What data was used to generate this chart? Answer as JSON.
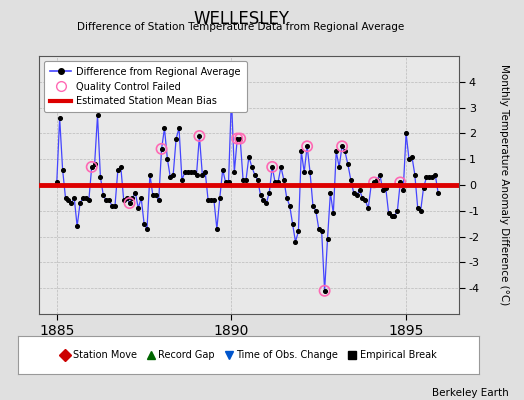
{
  "title": "WELLESLEY",
  "subtitle": "Difference of Station Temperature Data from Regional Average",
  "ylabel": "Monthly Temperature Anomaly Difference (°C)",
  "xlabel_ticks": [
    1885,
    1890,
    1895
  ],
  "ylim": [
    -5,
    5
  ],
  "xlim": [
    1884.5,
    1896.5
  ],
  "yticks": [
    -4,
    -3,
    -2,
    -1,
    0,
    1,
    2,
    3,
    4
  ],
  "background_color": "#e0e0e0",
  "plot_bg_color": "#e8e8e8",
  "line_color": "#4444ff",
  "dot_color": "#000000",
  "bias_color": "#dd0000",
  "bias_value": 0.0,
  "qc_color": "#ff69b4",
  "footer": "Berkeley Earth",
  "data_x": [
    1885.0,
    1885.083,
    1885.167,
    1885.25,
    1885.333,
    1885.417,
    1885.5,
    1885.583,
    1885.667,
    1885.75,
    1885.833,
    1885.917,
    1886.0,
    1886.083,
    1886.167,
    1886.25,
    1886.333,
    1886.417,
    1886.5,
    1886.583,
    1886.667,
    1886.75,
    1886.833,
    1886.917,
    1887.0,
    1887.083,
    1887.167,
    1887.25,
    1887.333,
    1887.417,
    1887.5,
    1887.583,
    1887.667,
    1887.75,
    1887.833,
    1887.917,
    1888.0,
    1888.083,
    1888.167,
    1888.25,
    1888.333,
    1888.417,
    1888.5,
    1888.583,
    1888.667,
    1888.75,
    1888.833,
    1888.917,
    1889.0,
    1889.083,
    1889.167,
    1889.25,
    1889.333,
    1889.417,
    1889.5,
    1889.583,
    1889.667,
    1889.75,
    1889.833,
    1889.917,
    1890.0,
    1890.083,
    1890.167,
    1890.25,
    1890.333,
    1890.417,
    1890.5,
    1890.583,
    1890.667,
    1890.75,
    1890.833,
    1890.917,
    1891.0,
    1891.083,
    1891.167,
    1891.25,
    1891.333,
    1891.417,
    1891.5,
    1891.583,
    1891.667,
    1891.75,
    1891.833,
    1891.917,
    1892.0,
    1892.083,
    1892.167,
    1892.25,
    1892.333,
    1892.417,
    1892.5,
    1892.583,
    1892.667,
    1892.75,
    1892.833,
    1892.917,
    1893.0,
    1893.083,
    1893.167,
    1893.25,
    1893.333,
    1893.417,
    1893.5,
    1893.583,
    1893.667,
    1893.75,
    1893.833,
    1893.917,
    1894.0,
    1894.083,
    1894.167,
    1894.25,
    1894.333,
    1894.417,
    1894.5,
    1894.583,
    1894.667,
    1894.75,
    1894.833,
    1894.917,
    1895.0,
    1895.083,
    1895.167,
    1895.25,
    1895.333,
    1895.417,
    1895.5,
    1895.583,
    1895.667,
    1895.75,
    1895.833,
    1895.917
  ],
  "data_y": [
    0.1,
    2.6,
    0.6,
    -0.5,
    -0.6,
    -0.7,
    -0.5,
    -1.6,
    -0.7,
    -0.5,
    -0.5,
    -0.6,
    0.7,
    0.8,
    2.7,
    0.3,
    -0.4,
    -0.6,
    -0.6,
    -0.8,
    -0.8,
    0.6,
    0.7,
    -0.6,
    -0.5,
    -0.7,
    -0.5,
    -0.3,
    -0.9,
    -0.5,
    -1.5,
    -1.7,
    0.4,
    -0.4,
    -0.4,
    -0.6,
    1.4,
    2.2,
    1.0,
    0.3,
    0.4,
    1.8,
    2.2,
    0.2,
    0.5,
    0.5,
    0.5,
    0.5,
    0.4,
    1.9,
    0.4,
    0.5,
    -0.6,
    -0.6,
    -0.6,
    -1.7,
    -0.5,
    0.6,
    0.1,
    0.1,
    3.4,
    0.5,
    1.8,
    1.8,
    0.2,
    0.2,
    1.1,
    0.7,
    0.4,
    0.2,
    -0.4,
    -0.6,
    -0.7,
    -0.3,
    0.7,
    0.1,
    0.1,
    0.7,
    0.2,
    -0.5,
    -0.8,
    -1.5,
    -2.2,
    -1.8,
    1.3,
    0.5,
    1.5,
    0.5,
    -0.8,
    -1.0,
    -1.7,
    -1.8,
    -4.1,
    -2.1,
    -0.3,
    -1.1,
    1.3,
    0.7,
    1.5,
    1.3,
    0.8,
    0.2,
    -0.3,
    -0.4,
    -0.2,
    -0.5,
    -0.6,
    -0.9,
    0.0,
    0.1,
    0.2,
    0.4,
    -0.2,
    -0.1,
    -1.1,
    -1.2,
    -1.2,
    -1.0,
    0.1,
    -0.2,
    2.0,
    1.0,
    1.1,
    0.4,
    -0.9,
    -1.0,
    -0.1,
    0.3,
    0.3,
    0.3,
    0.4,
    -0.3
  ],
  "qc_indices": [
    12,
    25,
    36,
    49,
    62,
    63,
    74,
    86,
    92,
    98,
    109,
    118
  ],
  "legend2_items": [
    {
      "label": "Station Move",
      "color": "#cc0000",
      "marker": "D"
    },
    {
      "label": "Record Gap",
      "color": "#006600",
      "marker": "^"
    },
    {
      "label": "Time of Obs. Change",
      "color": "#0055cc",
      "marker": "v"
    },
    {
      "label": "Empirical Break",
      "color": "#000000",
      "marker": "s"
    }
  ]
}
